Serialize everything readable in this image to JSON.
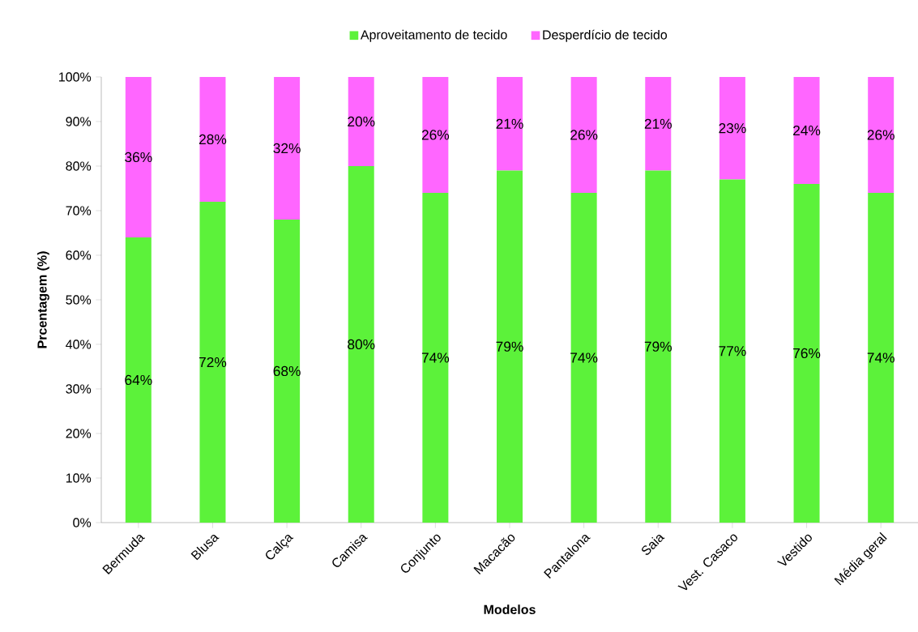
{
  "chart_data": {
    "type": "bar",
    "stacked": true,
    "xlabel": "Modelos",
    "ylabel": "Prcentagem (%)",
    "categories": [
      "Bermuda",
      "Blusa",
      "Calça",
      "Camisa",
      "Conjunto",
      "Macacão",
      "Pantalona",
      "Saia",
      "Vest. Casaco",
      "Vestido",
      "Média geral"
    ],
    "series": [
      {
        "name": "Aproveitamento de tecido",
        "color": "#5cf23a",
        "values": [
          64,
          72,
          68,
          80,
          74,
          79,
          74,
          79,
          77,
          76,
          74
        ],
        "value_labels": [
          "64%",
          "72%",
          "68%",
          "80%",
          "74%",
          "79%",
          "74%",
          "79%",
          "77%",
          "76%",
          "74%"
        ]
      },
      {
        "name": "Desperdício de tecido",
        "color": "#ff66ff",
        "values": [
          36,
          28,
          32,
          20,
          26,
          21,
          26,
          21,
          23,
          24,
          26
        ],
        "value_labels": [
          "36%",
          "28%",
          "32%",
          "20%",
          "26%",
          "21%",
          "26%",
          "21%",
          "23%",
          "24%",
          "26%"
        ]
      }
    ],
    "ylim": [
      0,
      100
    ],
    "yticks": [
      {
        "value": 0,
        "label": "0%"
      },
      {
        "value": 10,
        "label": "10%"
      },
      {
        "value": 20,
        "label": "20%"
      },
      {
        "value": 30,
        "label": "30%"
      },
      {
        "value": 40,
        "label": "40%"
      },
      {
        "value": 50,
        "label": "50%"
      },
      {
        "value": 60,
        "label": "60%"
      },
      {
        "value": 70,
        "label": "70%"
      },
      {
        "value": 80,
        "label": "80%"
      },
      {
        "value": 90,
        "label": "90%"
      },
      {
        "value": 100,
        "label": "100%"
      }
    ],
    "legend": "top"
  }
}
